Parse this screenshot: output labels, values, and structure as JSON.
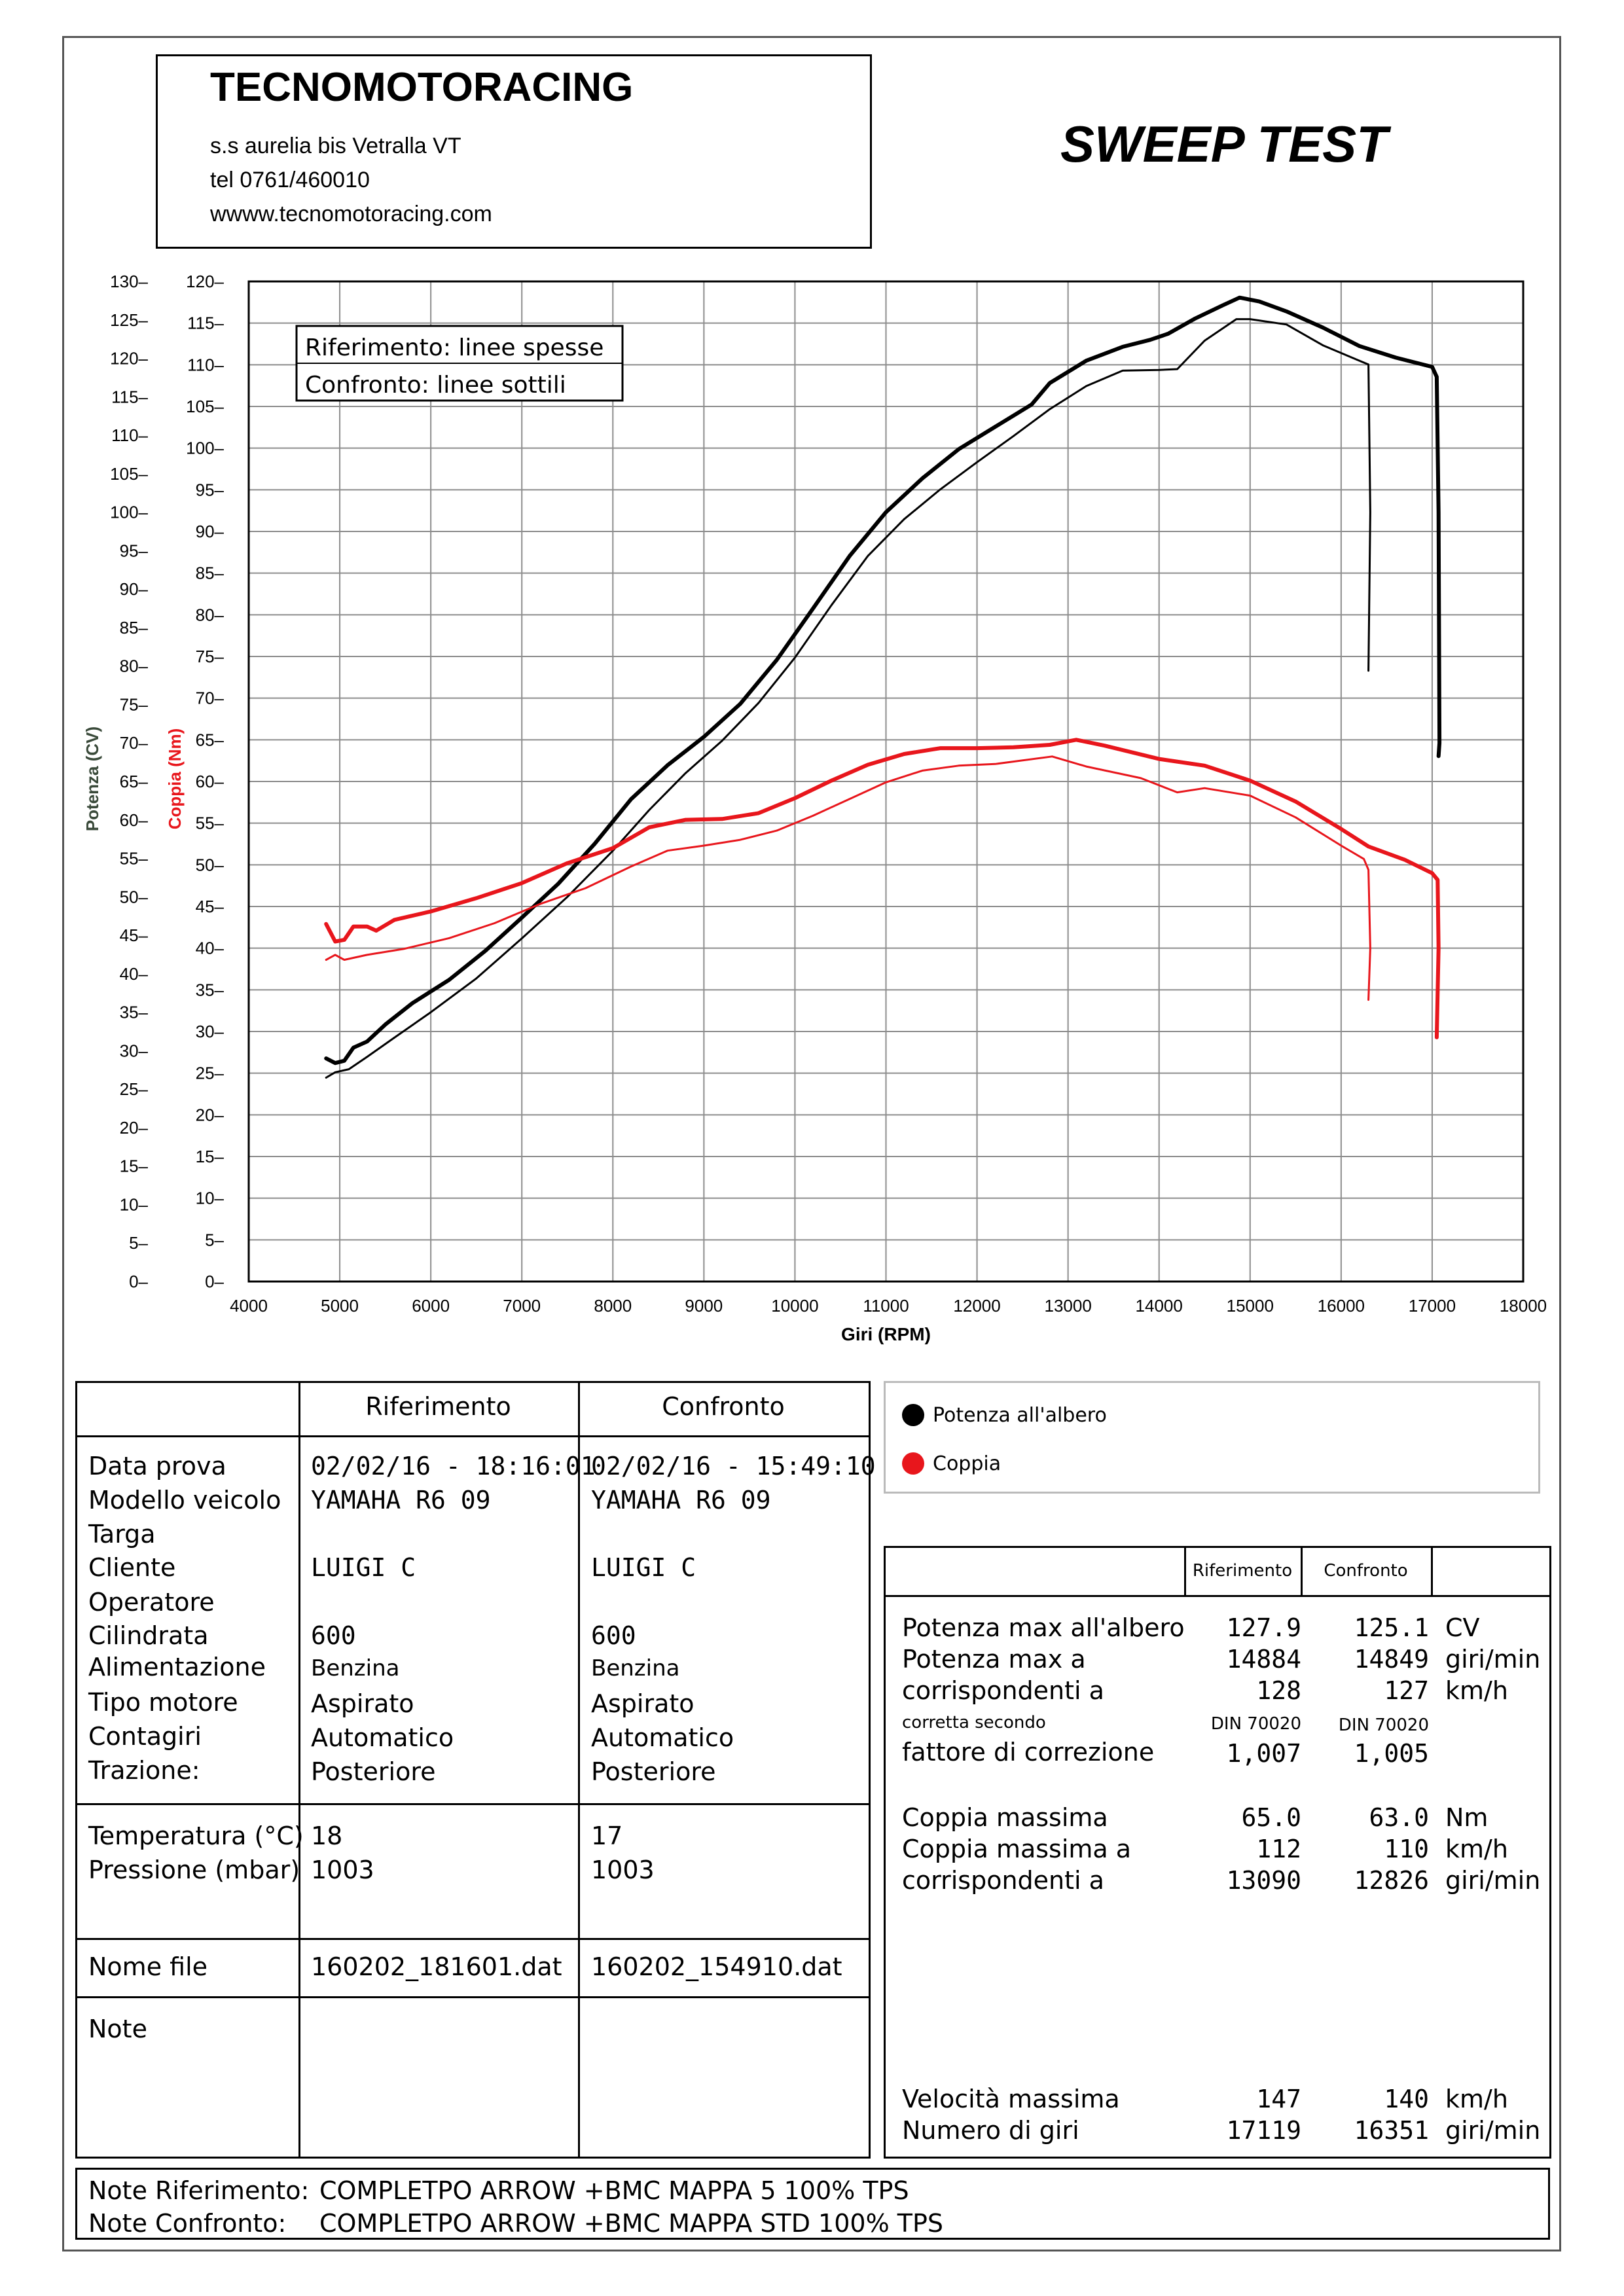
{
  "header": {
    "company": "TECNOMOTORACING",
    "address": "s.s aurelia bis  Vetralla  VT",
    "phone": "tel 0761/460010",
    "website": "wwww.tecnomotoracing.com",
    "test_title": "SWEEP TEST"
  },
  "chart_legend_box": {
    "line1": "Riferimento: linee spesse",
    "line2": "Confronto: linee sottili"
  },
  "colors": {
    "power": "#000000",
    "torque": "#e8161c",
    "grid": "#8c8c8c"
  },
  "chart_data": {
    "type": "line",
    "title": "",
    "xlabel": "Giri (RPM)",
    "ylabel_left": "Potenza (CV)",
    "ylabel_right": "Coppia (Nm)",
    "xlim": [
      4000,
      18000
    ],
    "x_ticks": [
      "4000",
      "5000",
      "6000",
      "7000",
      "8000",
      "9000",
      "10000",
      "11000",
      "12000",
      "13000",
      "14000",
      "15000",
      "16000",
      "17000",
      "18000"
    ],
    "power_axis_ticks": [
      "0",
      "5",
      "10",
      "15",
      "20",
      "25",
      "30",
      "35",
      "40",
      "45",
      "50",
      "55",
      "60",
      "65",
      "70",
      "75",
      "80",
      "85",
      "90",
      "95",
      "100",
      "105",
      "110",
      "115",
      "120",
      "125",
      "130"
    ],
    "torque_axis_ticks": [
      "0",
      "5",
      "10",
      "15",
      "20",
      "25",
      "30",
      "35",
      "40",
      "45",
      "50",
      "55",
      "60",
      "65",
      "70",
      "75",
      "80",
      "85",
      "90",
      "95",
      "100",
      "105",
      "110",
      "115",
      "120"
    ],
    "ylim_power": [
      0,
      130
    ],
    "ylim_torque": [
      0,
      120
    ],
    "grid": true,
    "series": [
      {
        "name": "Riferimento",
        "quantity": "Potenza all'albero",
        "axis": "power",
        "color": "#000000",
        "style": "thick",
        "points": [
          [
            4850,
            29
          ],
          [
            4950,
            28.4
          ],
          [
            5050,
            28.7
          ],
          [
            5150,
            30.4
          ],
          [
            5300,
            31.2
          ],
          [
            5500,
            33.4
          ],
          [
            5800,
            36.2
          ],
          [
            6200,
            39.2
          ],
          [
            6600,
            43.0
          ],
          [
            7000,
            47.3
          ],
          [
            7400,
            51.7
          ],
          [
            7800,
            56.9
          ],
          [
            8200,
            62.7
          ],
          [
            8600,
            67.1
          ],
          [
            9000,
            70.8
          ],
          [
            9400,
            75.1
          ],
          [
            9800,
            80.8
          ],
          [
            10200,
            87.5
          ],
          [
            10600,
            94.3
          ],
          [
            11000,
            100.0
          ],
          [
            11400,
            104.4
          ],
          [
            11800,
            108.2
          ],
          [
            12200,
            111.1
          ],
          [
            12600,
            114.0
          ],
          [
            12800,
            116.8
          ],
          [
            13200,
            119.7
          ],
          [
            13600,
            121.5
          ],
          [
            13900,
            122.4
          ],
          [
            14100,
            123.2
          ],
          [
            14400,
            125.2
          ],
          [
            14700,
            126.9
          ],
          [
            14884,
            127.9
          ],
          [
            15100,
            127.4
          ],
          [
            15400,
            126.1
          ],
          [
            15800,
            124.0
          ],
          [
            16200,
            121.6
          ],
          [
            16600,
            120.1
          ],
          [
            17000,
            118.9
          ],
          [
            17050,
            117.6
          ],
          [
            17070,
            100
          ],
          [
            17080,
            70
          ],
          [
            17070,
            68.3
          ]
        ]
      },
      {
        "name": "Confronto",
        "quantity": "Potenza all'albero",
        "axis": "power",
        "color": "#000000",
        "style": "thin",
        "points": [
          [
            4850,
            26.5
          ],
          [
            4950,
            27.2
          ],
          [
            5100,
            27.6
          ],
          [
            5300,
            29.2
          ],
          [
            5600,
            31.7
          ],
          [
            6000,
            35.0
          ],
          [
            6500,
            39.4
          ],
          [
            7000,
            44.6
          ],
          [
            7500,
            50.0
          ],
          [
            8000,
            56.0
          ],
          [
            8400,
            61.3
          ],
          [
            8800,
            66.1
          ],
          [
            9200,
            70.3
          ],
          [
            9600,
            75.2
          ],
          [
            10000,
            81.1
          ],
          [
            10400,
            87.9
          ],
          [
            10800,
            94.3
          ],
          [
            11200,
            99.1
          ],
          [
            11600,
            103.0
          ],
          [
            12000,
            106.5
          ],
          [
            12400,
            109.9
          ],
          [
            12800,
            113.4
          ],
          [
            13200,
            116.4
          ],
          [
            13600,
            118.4
          ],
          [
            14000,
            118.5
          ],
          [
            14200,
            118.6
          ],
          [
            14500,
            122.3
          ],
          [
            14849,
            125.1
          ],
          [
            15000,
            125.1
          ],
          [
            15400,
            124.4
          ],
          [
            15800,
            121.7
          ],
          [
            16200,
            119.7
          ],
          [
            16300,
            119.2
          ],
          [
            16320,
            100
          ],
          [
            16300,
            79.4
          ]
        ]
      },
      {
        "name": "Riferimento",
        "quantity": "Coppia",
        "axis": "torque",
        "color": "#e8161c",
        "style": "thick",
        "points": [
          [
            4850,
            42.9
          ],
          [
            4950,
            40.8
          ],
          [
            5050,
            41.0
          ],
          [
            5150,
            42.6
          ],
          [
            5300,
            42.6
          ],
          [
            5400,
            42.1
          ],
          [
            5600,
            43.4
          ],
          [
            6000,
            44.4
          ],
          [
            6500,
            46.0
          ],
          [
            7000,
            47.8
          ],
          [
            7500,
            50.2
          ],
          [
            8000,
            52.0
          ],
          [
            8400,
            54.5
          ],
          [
            8800,
            55.4
          ],
          [
            9200,
            55.5
          ],
          [
            9600,
            56.2
          ],
          [
            10000,
            58.0
          ],
          [
            10400,
            60.1
          ],
          [
            10800,
            62.0
          ],
          [
            11200,
            63.3
          ],
          [
            11600,
            64.0
          ],
          [
            12000,
            64.0
          ],
          [
            12400,
            64.1
          ],
          [
            12800,
            64.4
          ],
          [
            13090,
            65.0
          ],
          [
            13400,
            64.3
          ],
          [
            14000,
            62.7
          ],
          [
            14500,
            61.9
          ],
          [
            15000,
            60.1
          ],
          [
            15500,
            57.6
          ],
          [
            16000,
            54.3
          ],
          [
            16300,
            52.2
          ],
          [
            16700,
            50.6
          ],
          [
            17000,
            49.0
          ],
          [
            17060,
            48.2
          ],
          [
            17070,
            40
          ],
          [
            17050,
            29.3
          ]
        ]
      },
      {
        "name": "Confronto",
        "quantity": "Coppia",
        "axis": "torque",
        "color": "#e8161c",
        "style": "thin",
        "points": [
          [
            4850,
            38.6
          ],
          [
            4950,
            39.2
          ],
          [
            5050,
            38.6
          ],
          [
            5300,
            39.2
          ],
          [
            5700,
            39.9
          ],
          [
            6200,
            41.2
          ],
          [
            6700,
            43.0
          ],
          [
            7200,
            45.3
          ],
          [
            7700,
            47.2
          ],
          [
            8200,
            49.8
          ],
          [
            8600,
            51.7
          ],
          [
            9000,
            52.3
          ],
          [
            9400,
            53.0
          ],
          [
            9800,
            54.1
          ],
          [
            10200,
            55.9
          ],
          [
            10600,
            57.9
          ],
          [
            11000,
            59.9
          ],
          [
            11400,
            61.3
          ],
          [
            11800,
            61.9
          ],
          [
            12200,
            62.1
          ],
          [
            12826,
            63.0
          ],
          [
            13200,
            61.8
          ],
          [
            13800,
            60.4
          ],
          [
            14200,
            58.7
          ],
          [
            14500,
            59.2
          ],
          [
            15000,
            58.3
          ],
          [
            15500,
            55.7
          ],
          [
            16000,
            52.3
          ],
          [
            16250,
            50.7
          ],
          [
            16300,
            49.4
          ],
          [
            16320,
            40
          ],
          [
            16300,
            33.8
          ]
        ]
      }
    ]
  },
  "legend": {
    "power": "Potenza all'albero",
    "torque": "Coppia"
  },
  "left_table": {
    "col_ref": "Riferimento",
    "col_conf": "Confronto",
    "labels": [
      "Data prova",
      "Modello veicolo",
      "Targa",
      "Cliente",
      "Operatore",
      "Cilindrata",
      "Alimentazione",
      "Tipo motore",
      "Contagiri",
      "Trazione:"
    ],
    "ref": {
      "data": "02/02/16 - 18:16:01",
      "modello": "YAMAHA R6 09",
      "cliente": "LUIGI C",
      "cilindrata": "600",
      "alimentazione": "Benzina",
      "tipo": "Aspirato",
      "contagiri": "Automatico",
      "trazione": "Posteriore"
    },
    "conf": {
      "data": "02/02/16 - 15:49:10",
      "modello": "YAMAHA R6 09",
      "cliente": "LUIGI C",
      "cilindrata": "600",
      "alimentazione": "Benzina",
      "tipo": "Aspirato",
      "contagiri": "Automatico",
      "trazione": "Posteriore"
    },
    "temp_label": "Temperatura (°C)",
    "press_label": "Pressione (mbar)",
    "temp_ref": "18",
    "press_ref": "1003",
    "temp_conf": "17",
    "press_conf": "1003",
    "file_label": "Nome file",
    "file_ref": "160202_181601.dat",
    "file_conf": "160202_154910.dat",
    "note_label": "Note"
  },
  "right_table": {
    "col_ref": "Riferimento",
    "col_conf": "Confronto",
    "rows": [
      {
        "label": "Potenza max all'albero",
        "ref": "127.9",
        "conf": "125.1",
        "unit": "CV"
      },
      {
        "label": "Potenza max a",
        "ref": "14884",
        "conf": "14849",
        "unit": "giri/min"
      },
      {
        "label": "corrispondenti a",
        "ref": "128",
        "conf": "127",
        "unit": "km/h"
      }
    ],
    "corr_label": "corretta secondo",
    "corr_ref": "DIN 70020",
    "corr_conf": "DIN 70020",
    "fattore_label": "fattore di correzione",
    "fattore_ref": "1,007",
    "fattore_conf": "1,005",
    "torque_rows": [
      {
        "label": "Coppia massima",
        "ref": "65.0",
        "conf": "63.0",
        "unit": "Nm"
      },
      {
        "label": "Coppia massima a",
        "ref": "112",
        "conf": "110",
        "unit": "km/h"
      },
      {
        "label": "corrispondenti a",
        "ref": "13090",
        "conf": "12826",
        "unit": "giri/min"
      }
    ],
    "speed_rows": [
      {
        "label": "Velocità massima",
        "ref": "147",
        "conf": "140",
        "unit": "km/h"
      },
      {
        "label": "Numero di giri",
        "ref": "17119",
        "conf": "16351",
        "unit": "giri/min"
      }
    ]
  },
  "notes": {
    "ref_label": "Note Riferimento:",
    "ref_text": "COMPLETPO ARROW +BMC MAPPA 5 100% TPS",
    "conf_label": "Note Confronto:",
    "conf_text": "COMPLETPO ARROW +BMC MAPPA STD 100% TPS"
  }
}
